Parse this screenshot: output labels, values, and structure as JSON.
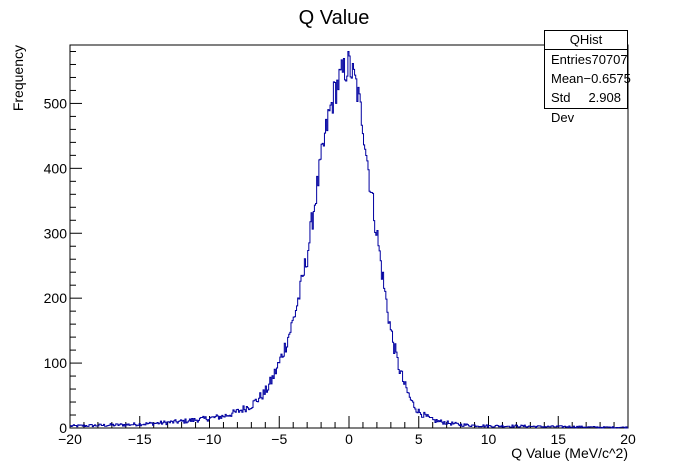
{
  "chart_data": {
    "type": "histogram",
    "title": "Q Value",
    "xlabel": "Q Value (MeV/c^2)",
    "ylabel": "Frequency",
    "xlim": [
      -20,
      20
    ],
    "ylim": [
      0,
      590
    ],
    "x_ticks": [
      -20,
      -15,
      -10,
      -5,
      0,
      5,
      10,
      15,
      20
    ],
    "x_tick_labels": [
      "−20",
      "−15",
      "−10",
      "−5",
      "0",
      "5",
      "10",
      "15",
      "20"
    ],
    "y_ticks": [
      0,
      100,
      200,
      300,
      400,
      500
    ],
    "y_tick_labels": [
      "0",
      "100",
      "200",
      "300",
      "400",
      "500"
    ],
    "grid": false,
    "line_color": "#0000a0",
    "series": [
      {
        "name": "QHist",
        "bin_centers": [
          -20,
          -18,
          -16,
          -14,
          -12,
          -10,
          -9,
          -8,
          -7,
          -6.5,
          -6,
          -5.5,
          -5,
          -4.5,
          -4,
          -3.5,
          -3,
          -2.5,
          -2,
          -1.5,
          -1,
          -0.5,
          0,
          0.5,
          1,
          1.5,
          2,
          2.5,
          3,
          3.5,
          4,
          4.5,
          5,
          5.5,
          6,
          7,
          8,
          9,
          10,
          12,
          14,
          16,
          18,
          20
        ],
        "values": [
          3,
          4,
          5,
          7,
          10,
          15,
          18,
          25,
          35,
          45,
          55,
          75,
          100,
          130,
          165,
          210,
          265,
          340,
          410,
          475,
          520,
          545,
          560,
          530,
          470,
          380,
          300,
          220,
          150,
          100,
          65,
          40,
          25,
          18,
          12,
          8,
          5,
          4,
          3,
          3,
          2,
          2,
          1,
          1
        ]
      }
    ]
  },
  "stats": {
    "title": "QHist",
    "rows": [
      {
        "label": "Entries",
        "value": "70707"
      },
      {
        "label": "Mean",
        "value": "−0.6575"
      },
      {
        "label": "Std Dev",
        "value": "2.908"
      }
    ]
  }
}
